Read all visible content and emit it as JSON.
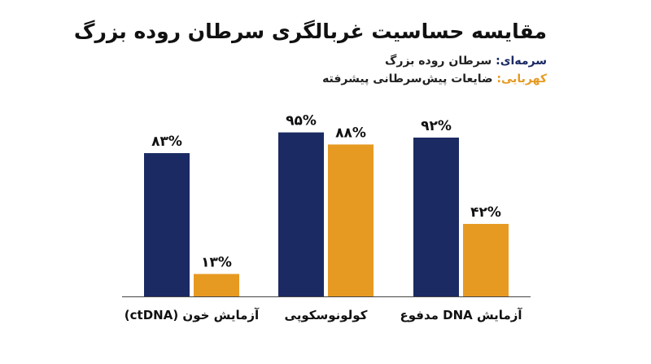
{
  "colors": {
    "navy": "#1b2a63",
    "amber": "#e69a22",
    "axis": "#444444"
  },
  "chart_data": {
    "type": "bar",
    "title": "مقایسه حساسیت غربالگری سرطان روده بزرگ",
    "categories": [
      "آزمایش خون (ctDNA)",
      "کولونوسکوپی",
      "آزمایش DNA مدفوع"
    ],
    "series": [
      {
        "name": "سرطان روده بزرگ",
        "values": [
          83,
          95,
          92
        ],
        "labels": [
          "۸۳%",
          "۹۵%",
          "۹۲%"
        ]
      },
      {
        "name": "ضایعات پیش‌سرطانی پیشرفته",
        "values": [
          13,
          88,
          42
        ],
        "labels": [
          "۱۳%",
          "۸۸%",
          "۴۲%"
        ]
      }
    ],
    "legend": {
      "items": [
        {
          "key": "سرمه‌ای:",
          "label": "سرطان روده بزرگ"
        },
        {
          "key": "کهربایی:",
          "label": "ضایعات پیش‌سرطانی پیشرفته"
        }
      ],
      "position": "top-right"
    },
    "ylim": [
      0,
      100
    ],
    "grid": false
  }
}
